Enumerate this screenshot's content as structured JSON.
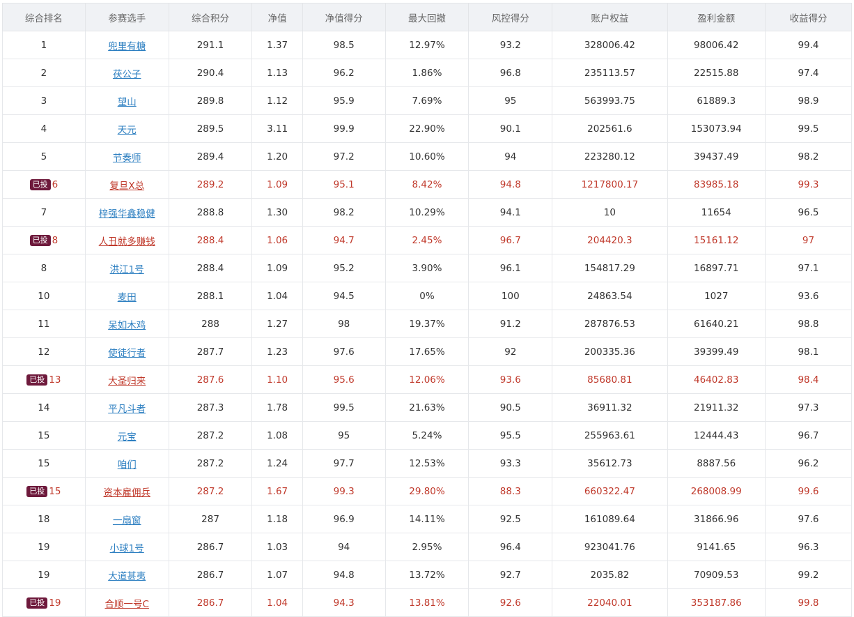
{
  "table": {
    "headers": [
      "综合排名",
      "参赛选手",
      "综合积分",
      "净值",
      "净值得分",
      "最大回撤",
      "风控得分",
      "账户权益",
      "盈利金额",
      "收益得分"
    ],
    "invested_badge": "已投",
    "rows": [
      {
        "rank": "1",
        "name": "兜里有糖",
        "score": "291.1",
        "nav": "1.37",
        "nav_score": "98.5",
        "max_dd": "12.97%",
        "risk_score": "93.2",
        "equity": "328006.42",
        "profit": "98006.42",
        "return_score": "99.4",
        "invested": false
      },
      {
        "rank": "2",
        "name": "茯公子",
        "score": "290.4",
        "nav": "1.13",
        "nav_score": "96.2",
        "max_dd": "1.86%",
        "risk_score": "96.8",
        "equity": "235113.57",
        "profit": "22515.88",
        "return_score": "97.4",
        "invested": false
      },
      {
        "rank": "3",
        "name": "望山",
        "score": "289.8",
        "nav": "1.12",
        "nav_score": "95.9",
        "max_dd": "7.69%",
        "risk_score": "95",
        "equity": "563993.75",
        "profit": "61889.3",
        "return_score": "98.9",
        "invested": false
      },
      {
        "rank": "4",
        "name": "天元",
        "score": "289.5",
        "nav": "3.11",
        "nav_score": "99.9",
        "max_dd": "22.90%",
        "risk_score": "90.1",
        "equity": "202561.6",
        "profit": "153073.94",
        "return_score": "99.5",
        "invested": false
      },
      {
        "rank": "5",
        "name": "节奏师",
        "score": "289.4",
        "nav": "1.20",
        "nav_score": "97.2",
        "max_dd": "10.60%",
        "risk_score": "94",
        "equity": "223280.12",
        "profit": "39437.49",
        "return_score": "98.2",
        "invested": false
      },
      {
        "rank": "6",
        "name": "复旦X总",
        "score": "289.2",
        "nav": "1.09",
        "nav_score": "95.1",
        "max_dd": "8.42%",
        "risk_score": "94.8",
        "equity": "1217800.17",
        "profit": "83985.18",
        "return_score": "99.3",
        "invested": true
      },
      {
        "rank": "7",
        "name": "梓强华鑫稳健",
        "score": "288.8",
        "nav": "1.30",
        "nav_score": "98.2",
        "max_dd": "10.29%",
        "risk_score": "94.1",
        "equity": "10",
        "profit": "11654",
        "return_score": "96.5",
        "invested": false
      },
      {
        "rank": "8",
        "name": "人丑就多赚钱",
        "score": "288.4",
        "nav": "1.06",
        "nav_score": "94.7",
        "max_dd": "2.45%",
        "risk_score": "96.7",
        "equity": "204420.3",
        "profit": "15161.12",
        "return_score": "97",
        "invested": true
      },
      {
        "rank": "8",
        "name": "洪江1号",
        "score": "288.4",
        "nav": "1.09",
        "nav_score": "95.2",
        "max_dd": "3.90%",
        "risk_score": "96.1",
        "equity": "154817.29",
        "profit": "16897.71",
        "return_score": "97.1",
        "invested": false
      },
      {
        "rank": "10",
        "name": "麦田",
        "score": "288.1",
        "nav": "1.04",
        "nav_score": "94.5",
        "max_dd": "0%",
        "risk_score": "100",
        "equity": "24863.54",
        "profit": "1027",
        "return_score": "93.6",
        "invested": false
      },
      {
        "rank": "11",
        "name": "呆如木鸡",
        "score": "288",
        "nav": "1.27",
        "nav_score": "98",
        "max_dd": "19.37%",
        "risk_score": "91.2",
        "equity": "287876.53",
        "profit": "61640.21",
        "return_score": "98.8",
        "invested": false
      },
      {
        "rank": "12",
        "name": "使徒行者",
        "score": "287.7",
        "nav": "1.23",
        "nav_score": "97.6",
        "max_dd": "17.65%",
        "risk_score": "92",
        "equity": "200335.36",
        "profit": "39399.49",
        "return_score": "98.1",
        "invested": false
      },
      {
        "rank": "13",
        "name": "大圣归来",
        "score": "287.6",
        "nav": "1.10",
        "nav_score": "95.6",
        "max_dd": "12.06%",
        "risk_score": "93.6",
        "equity": "85680.81",
        "profit": "46402.83",
        "return_score": "98.4",
        "invested": true
      },
      {
        "rank": "14",
        "name": "平凡斗者",
        "score": "287.3",
        "nav": "1.78",
        "nav_score": "99.5",
        "max_dd": "21.63%",
        "risk_score": "90.5",
        "equity": "36911.32",
        "profit": "21911.32",
        "return_score": "97.3",
        "invested": false
      },
      {
        "rank": "15",
        "name": "元宝",
        "score": "287.2",
        "nav": "1.08",
        "nav_score": "95",
        "max_dd": "5.24%",
        "risk_score": "95.5",
        "equity": "255963.61",
        "profit": "12444.43",
        "return_score": "96.7",
        "invested": false
      },
      {
        "rank": "15",
        "name": "咱们",
        "score": "287.2",
        "nav": "1.24",
        "nav_score": "97.7",
        "max_dd": "12.53%",
        "risk_score": "93.3",
        "equity": "35612.73",
        "profit": "8887.56",
        "return_score": "96.2",
        "invested": false
      },
      {
        "rank": "15",
        "name": "资本雇佣兵",
        "score": "287.2",
        "nav": "1.67",
        "nav_score": "99.3",
        "max_dd": "29.80%",
        "risk_score": "88.3",
        "equity": "660322.47",
        "profit": "268008.99",
        "return_score": "99.6",
        "invested": true
      },
      {
        "rank": "18",
        "name": "一扇窗",
        "score": "287",
        "nav": "1.18",
        "nav_score": "96.9",
        "max_dd": "14.11%",
        "risk_score": "92.5",
        "equity": "161089.64",
        "profit": "31866.96",
        "return_score": "97.6",
        "invested": false
      },
      {
        "rank": "19",
        "name": "小球1号",
        "score": "286.7",
        "nav": "1.03",
        "nav_score": "94",
        "max_dd": "2.95%",
        "risk_score": "96.4",
        "equity": "923041.76",
        "profit": "9141.65",
        "return_score": "96.3",
        "invested": false
      },
      {
        "rank": "19",
        "name": "大道甚夷",
        "score": "286.7",
        "nav": "1.07",
        "nav_score": "94.8",
        "max_dd": "13.72%",
        "risk_score": "92.7",
        "equity": "2035.82",
        "profit": "70909.53",
        "return_score": "99.2",
        "invested": false
      },
      {
        "rank": "19",
        "name": "合顺一号C",
        "score": "286.7",
        "nav": "1.04",
        "nav_score": "94.3",
        "max_dd": "13.81%",
        "risk_score": "92.6",
        "equity": "22040.01",
        "profit": "353187.86",
        "return_score": "99.8",
        "invested": true
      }
    ]
  },
  "colors": {
    "link": "#2d7fc1",
    "invested_text": "#c0392b",
    "badge_bg": "#6e1a3c",
    "header_bg": "#f0f2f5"
  }
}
